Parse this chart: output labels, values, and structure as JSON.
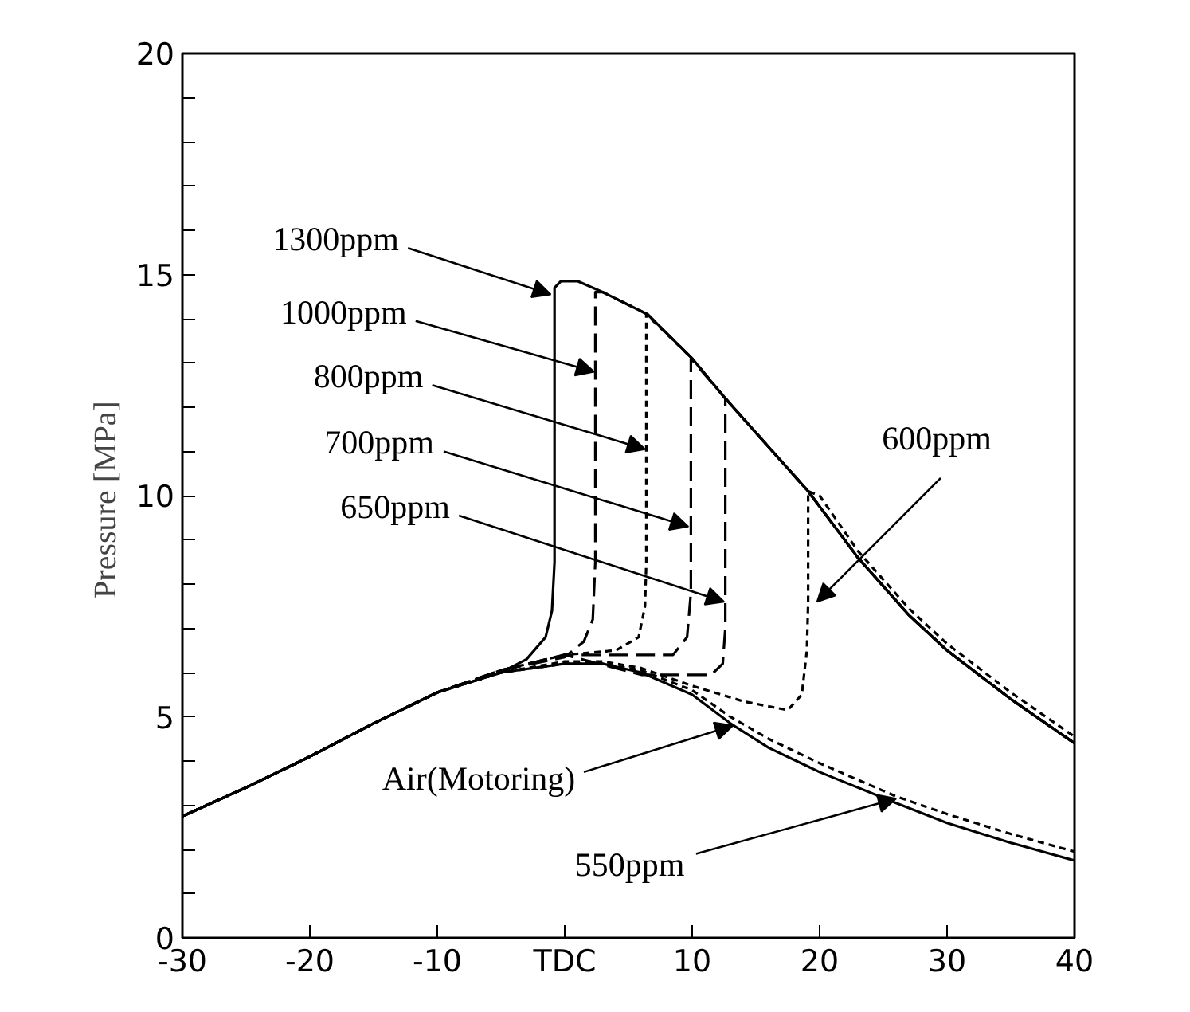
{
  "chart_data": {
    "type": "line",
    "ylabel": "Pressure  [MPa]",
    "xlim": [
      -30,
      40
    ],
    "ylim": [
      0,
      20
    ],
    "xticks": [
      -30,
      -20,
      -10,
      {
        "value": 0,
        "label": "TDC"
      },
      10,
      20,
      30,
      40
    ],
    "yticks": [
      0,
      {
        "value": 1,
        "label": null
      },
      {
        "value": 2,
        "label": null
      },
      {
        "value": 3,
        "label": null
      },
      {
        "value": 4,
        "label": null
      },
      5,
      {
        "value": 6,
        "label": null
      },
      {
        "value": 7,
        "label": null
      },
      {
        "value": 8,
        "label": null
      },
      {
        "value": 9,
        "label": null
      },
      10,
      {
        "value": 11,
        "label": null
      },
      {
        "value": 12,
        "label": null
      },
      {
        "value": 13,
        "label": null
      },
      {
        "value": 14,
        "label": null
      },
      15,
      {
        "value": 16,
        "label": null
      },
      {
        "value": 17,
        "label": null
      },
      {
        "value": 18,
        "label": null
      },
      {
        "value": 19,
        "label": null
      },
      20
    ],
    "grid": false,
    "marker": "none",
    "annotations": [
      {
        "text": "1300ppm",
        "x": -1.1,
        "y": 14.55
      },
      {
        "text": "1000ppm",
        "x": 2.3,
        "y": 12.8
      },
      {
        "text": "800ppm",
        "x": 6.3,
        "y": 11.05
      },
      {
        "text": "700ppm",
        "x": 9.7,
        "y": 9.3
      },
      {
        "text": "650ppm",
        "x": 12.5,
        "y": 7.6
      },
      {
        "text": "600ppm",
        "x": 19.8,
        "y": 7.6
      },
      {
        "text": "Air(Motoring)",
        "x": 13.2,
        "y": 4.8
      },
      {
        "text": "550ppm",
        "x": 26.0,
        "y": 3.15
      }
    ],
    "series": [
      {
        "color": "#000000",
        "line_style": "solid",
        "x": [
          -30,
          -25,
          -20,
          -15,
          -10,
          -5,
          -3,
          -1.5,
          -1,
          -0.8,
          -0.8,
          -0.3,
          1,
          3,
          6.5,
          10,
          12.6,
          16,
          19.1,
          23,
          27,
          30,
          35,
          40
        ],
        "values": [
          2.75,
          3.4,
          4.1,
          4.85,
          5.55,
          6.0,
          6.3,
          6.8,
          7.4,
          8.5,
          14.7,
          14.85,
          14.85,
          14.6,
          14.1,
          13.1,
          12.2,
          11.1,
          10.1,
          8.6,
          7.3,
          6.5,
          5.4,
          4.4
        ]
      },
      {
        "color": "#000000",
        "line_style": "dashed",
        "x": [
          -30,
          -25,
          -20,
          -15,
          -10,
          -5,
          0,
          1.5,
          2.2,
          2.4,
          2.4,
          3,
          6.5,
          10,
          12.6,
          16,
          19.1,
          23,
          27,
          30,
          35,
          40
        ],
        "values": [
          2.75,
          3.4,
          4.1,
          4.85,
          5.55,
          6.05,
          6.35,
          6.7,
          7.2,
          8.5,
          14.6,
          14.6,
          14.1,
          13.1,
          12.2,
          11.1,
          10.1,
          8.6,
          7.3,
          6.5,
          5.4,
          4.4
        ]
      },
      {
        "color": "#000000",
        "line_style": "dotted",
        "x": [
          -30,
          -25,
          -20,
          -15,
          -10,
          -5,
          0,
          4,
          5.8,
          6.3,
          6.4,
          6.4,
          10,
          12.6,
          16,
          19.1,
          23,
          27,
          30,
          35,
          40
        ],
        "values": [
          2.75,
          3.4,
          4.1,
          4.85,
          5.55,
          6.05,
          6.4,
          6.5,
          6.8,
          7.5,
          8.5,
          14.1,
          13.1,
          12.2,
          11.1,
          10.1,
          8.6,
          7.3,
          6.5,
          5.4,
          4.4
        ]
      },
      {
        "color": "#000000",
        "line_style": "dashed",
        "x": [
          -30,
          -25,
          -20,
          -15,
          -10,
          -5,
          0,
          5,
          8.5,
          9.6,
          9.9,
          9.9,
          12.6,
          16,
          19.1,
          23,
          27,
          30,
          35,
          40
        ],
        "values": [
          2.75,
          3.4,
          4.1,
          4.85,
          5.55,
          6.05,
          6.4,
          6.4,
          6.4,
          6.8,
          7.8,
          13.1,
          12.2,
          11.1,
          10.1,
          8.6,
          7.3,
          6.5,
          5.4,
          4.4
        ]
      },
      {
        "color": "#000000",
        "line_style": "dashed",
        "x": [
          -30,
          -25,
          -20,
          -15,
          -10,
          -5,
          0,
          4,
          6,
          11.5,
          12.4,
          12.6,
          12.6,
          16,
          19.1,
          23,
          27,
          30,
          35,
          40
        ],
        "values": [
          2.75,
          3.4,
          4.1,
          4.85,
          5.55,
          6.05,
          6.4,
          6.1,
          5.95,
          5.95,
          6.2,
          7.0,
          12.2,
          11.1,
          10.1,
          8.6,
          7.3,
          6.5,
          5.4,
          4.4
        ]
      },
      {
        "color": "#000000",
        "line_style": "dotted",
        "x": [
          -30,
          -25,
          -20,
          -15,
          -10,
          -5,
          0,
          3,
          6,
          10,
          14,
          17.5,
          18.6,
          19,
          19.1,
          19.1,
          20,
          23,
          27,
          30,
          35,
          40
        ],
        "values": [
          2.75,
          3.4,
          4.1,
          4.85,
          5.55,
          6.0,
          6.25,
          6.25,
          6.1,
          5.7,
          5.35,
          5.15,
          5.5,
          6.5,
          7.6,
          10.1,
          10.0,
          8.75,
          7.45,
          6.65,
          5.55,
          4.55
        ]
      },
      {
        "color": "#000000",
        "line_style": "solid",
        "x": [
          -30,
          -25,
          -20,
          -15,
          -10,
          -5,
          0,
          3,
          6,
          10,
          13,
          16,
          20,
          26,
          30,
          35,
          40
        ],
        "values": [
          2.75,
          3.4,
          4.1,
          4.85,
          5.55,
          6.0,
          6.2,
          6.2,
          6.0,
          5.5,
          4.85,
          4.3,
          3.75,
          3.05,
          2.6,
          2.15,
          1.75
        ]
      },
      {
        "color": "#000000",
        "line_style": "dotted",
        "x": [
          -30,
          -25,
          -20,
          -15,
          -10,
          -5,
          0,
          3,
          6,
          10,
          13,
          16,
          20,
          26,
          30,
          35,
          40
        ],
        "values": [
          2.75,
          3.4,
          4.1,
          4.85,
          5.55,
          6.0,
          6.2,
          6.2,
          6.05,
          5.6,
          5.0,
          4.5,
          3.95,
          3.2,
          2.8,
          2.35,
          1.95
        ]
      }
    ]
  }
}
